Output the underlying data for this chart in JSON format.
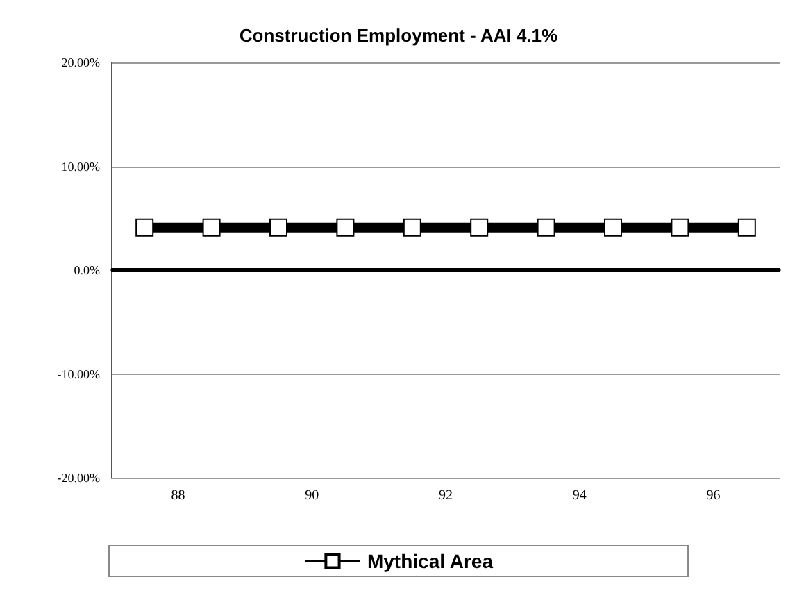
{
  "chart_data": {
    "type": "line",
    "title": "Construction Employment - AAI 4.1%",
    "x": [
      87.5,
      88.5,
      89.5,
      90.5,
      91.5,
      92.5,
      93.5,
      94.5,
      95.5,
      96.5
    ],
    "series": [
      {
        "name": "Mythical Area",
        "color": "#000000",
        "values": [
          4.1,
          4.1,
          4.1,
          4.1,
          4.1,
          4.1,
          4.1,
          4.1,
          4.1,
          4.1
        ]
      }
    ],
    "xlim": [
      87,
      97
    ],
    "xticks": [
      88,
      90,
      92,
      94,
      96
    ],
    "ylim": [
      -20,
      20
    ],
    "yticks": [
      {
        "value": -20,
        "label": "-20.00%"
      },
      {
        "value": -10,
        "label": "-10.00%"
      },
      {
        "value": 0,
        "label": "0.0%"
      },
      {
        "value": 10,
        "label": "10.00%"
      },
      {
        "value": 20,
        "label": "20.00%"
      }
    ],
    "ref_lines": [
      {
        "axis": "y",
        "value": 0,
        "color": "#000000"
      }
    ],
    "grid": "y",
    "legend": "bottom",
    "marker": "square",
    "line_style": "solid"
  }
}
